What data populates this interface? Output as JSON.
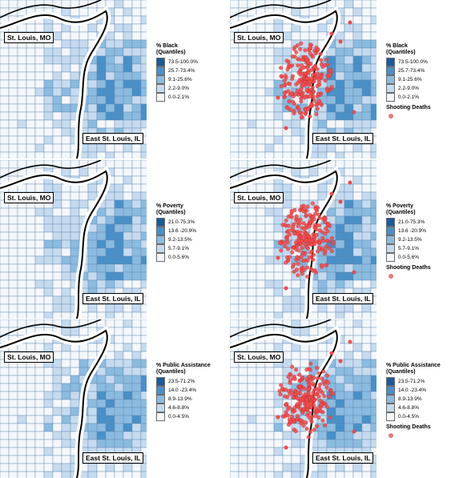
{
  "colors": {
    "q1": "#f4f7fb",
    "q2": "#c6dbef",
    "q3": "#8cbbe0",
    "q4": "#4a90c8",
    "q5": "#1a5a9e",
    "river": "#ffffff",
    "dots": "#f24b4b"
  },
  "city_labels": {
    "mo": "St. Louis, MO",
    "il": "East St. Louis, IL"
  },
  "legends": {
    "black": {
      "title": "% Black",
      "subtitle": "(Quantiles)",
      "classes": [
        "73.5-100.0%",
        "25.7-73.4%",
        "9.1-25.6%",
        "2.2-9.0%",
        "0.0-2.1%"
      ]
    },
    "poverty": {
      "title": "% Poverty",
      "subtitle": "(Quantiles)",
      "classes": [
        "21.0-75.3%",
        "13.6 -20.9%",
        "9.2-13.5%",
        "5.7-9.1%",
        "0.0-5.6%"
      ]
    },
    "assistance": {
      "title": "% Public Assistance",
      "subtitle": "(Quantiles)",
      "classes": [
        "23.5-71.2%",
        "14.0 -23.4%",
        "8.9-13.9%",
        "4.6-8.8%",
        "0.0-4.5%"
      ]
    }
  },
  "shooting_label": "Shooting Deaths",
  "panels": [
    {
      "legend": "black",
      "shootings": false
    },
    {
      "legend": "black",
      "shootings": true
    },
    {
      "legend": "poverty",
      "shootings": false
    },
    {
      "legend": "poverty",
      "shootings": true
    },
    {
      "legend": "assistance",
      "shootings": false
    },
    {
      "legend": "assistance",
      "shootings": true
    }
  ]
}
